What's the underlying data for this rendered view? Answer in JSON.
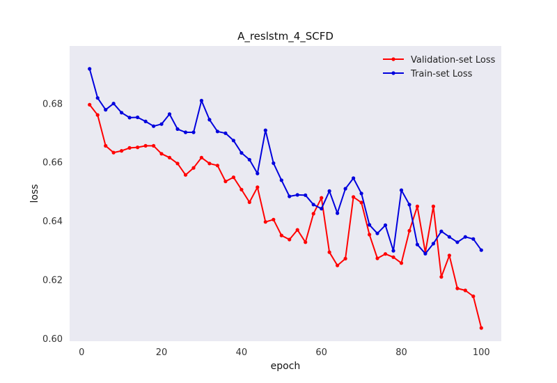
{
  "chart_data": {
    "type": "line",
    "title": "A_reslstm_4_SCFD",
    "xlabel": "epoch",
    "ylabel": "loss",
    "xlim": [
      -3,
      105
    ],
    "ylim": [
      0.599,
      0.6995
    ],
    "xticks": [
      0,
      20,
      40,
      60,
      80,
      100
    ],
    "yticks": [
      0.6,
      0.62,
      0.64,
      0.66,
      0.68
    ],
    "ytick_labels": [
      "0.60",
      "0.62",
      "0.64",
      "0.66",
      "0.68"
    ],
    "grid": false,
    "legend_position": "top-right",
    "x": [
      2,
      4,
      6,
      8,
      10,
      12,
      14,
      16,
      18,
      20,
      22,
      24,
      26,
      28,
      30,
      32,
      34,
      36,
      38,
      40,
      42,
      44,
      46,
      48,
      50,
      52,
      54,
      56,
      58,
      60,
      62,
      64,
      66,
      68,
      70,
      72,
      74,
      76,
      78,
      80,
      82,
      84,
      86,
      88,
      90,
      92,
      94,
      96,
      98,
      100
    ],
    "series": [
      {
        "name": "Validation-set Loss",
        "color": "#ff0000",
        "values": [
          0.6795,
          0.676,
          0.6655,
          0.6632,
          0.6638,
          0.6648,
          0.665,
          0.6655,
          0.6655,
          0.6628,
          0.6615,
          0.6595,
          0.6556,
          0.658,
          0.6615,
          0.6595,
          0.6588,
          0.6534,
          0.6548,
          0.6506,
          0.6463,
          0.6514,
          0.6396,
          0.6404,
          0.635,
          0.6336,
          0.6369,
          0.6327,
          0.6424,
          0.6478,
          0.6293,
          0.6248,
          0.6271,
          0.6481,
          0.6462,
          0.6353,
          0.6272,
          0.6287,
          0.6276,
          0.6256,
          0.6366,
          0.6449,
          0.6292,
          0.6449,
          0.6209,
          0.6282,
          0.617,
          0.6163,
          0.6143,
          0.6035
        ]
      },
      {
        "name": "Train-set Loss",
        "color": "#0000dd",
        "values": [
          0.6917,
          0.6818,
          0.6778,
          0.6799,
          0.6768,
          0.6751,
          0.6752,
          0.6738,
          0.6722,
          0.6729,
          0.6763,
          0.6712,
          0.6701,
          0.6701,
          0.6809,
          0.6744,
          0.6704,
          0.6698,
          0.6673,
          0.6631,
          0.6608,
          0.6561,
          0.6708,
          0.6596,
          0.6538,
          0.6483,
          0.6488,
          0.6487,
          0.6455,
          0.6441,
          0.6501,
          0.6426,
          0.6509,
          0.6545,
          0.6493,
          0.6386,
          0.6357,
          0.6385,
          0.6298,
          0.6504,
          0.6455,
          0.6319,
          0.6288,
          0.6322,
          0.6364,
          0.6345,
          0.6327,
          0.6345,
          0.6338,
          0.63
        ]
      }
    ]
  },
  "colors": {
    "plot_background": "#eaeaf2",
    "validation": "#ff0000",
    "train": "#0000dd"
  }
}
